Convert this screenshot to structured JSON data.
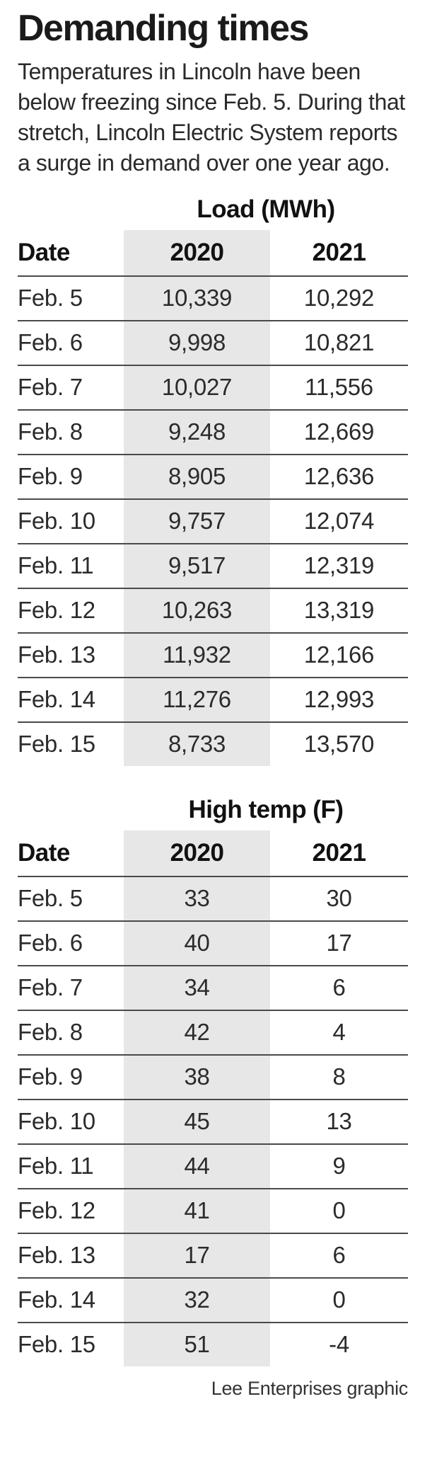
{
  "title": "Demanding times",
  "intro": "Temperatures in Lincoln have been below freezing since Feb. 5. During that stretch, Lincoln Electric System reports a surge in demand over one year ago.",
  "credit": "Lee Enterprises graphic",
  "colors": {
    "highlight_band": "#e7e7e8",
    "rule": "#4a4a4a",
    "text": "#231f20"
  },
  "chart_data": [
    {
      "type": "table",
      "title": "Load (MWh)",
      "columns": [
        "Date",
        "2020",
        "2021"
      ],
      "rows": [
        [
          "Feb. 5",
          "10,339",
          "10,292"
        ],
        [
          "Feb. 6",
          "9,998",
          "10,821"
        ],
        [
          "Feb. 7",
          "10,027",
          "11,556"
        ],
        [
          "Feb. 8",
          "9,248",
          "12,669"
        ],
        [
          "Feb. 9",
          "8,905",
          "12,636"
        ],
        [
          "Feb. 10",
          "9,757",
          "12,074"
        ],
        [
          "Feb. 11",
          "9,517",
          "12,319"
        ],
        [
          "Feb. 12",
          "10,263",
          "13,319"
        ],
        [
          "Feb. 13",
          "11,932",
          "12,166"
        ],
        [
          "Feb. 14",
          "11,276",
          "12,993"
        ],
        [
          "Feb. 15",
          "8,733",
          "13,570"
        ]
      ]
    },
    {
      "type": "table",
      "title": "High temp (F)",
      "columns": [
        "Date",
        "2020",
        "2021"
      ],
      "rows": [
        [
          "Feb. 5",
          "33",
          "30"
        ],
        [
          "Feb. 6",
          "40",
          "17"
        ],
        [
          "Feb. 7",
          "34",
          "6"
        ],
        [
          "Feb. 8",
          "42",
          "4"
        ],
        [
          "Feb. 9",
          "38",
          "8"
        ],
        [
          "Feb. 10",
          "45",
          "13"
        ],
        [
          "Feb. 11",
          "44",
          "9"
        ],
        [
          "Feb. 12",
          "41",
          "0"
        ],
        [
          "Feb. 13",
          "17",
          "6"
        ],
        [
          "Feb. 14",
          "32",
          "0"
        ],
        [
          "Feb. 15",
          "51",
          "-4"
        ]
      ]
    }
  ]
}
